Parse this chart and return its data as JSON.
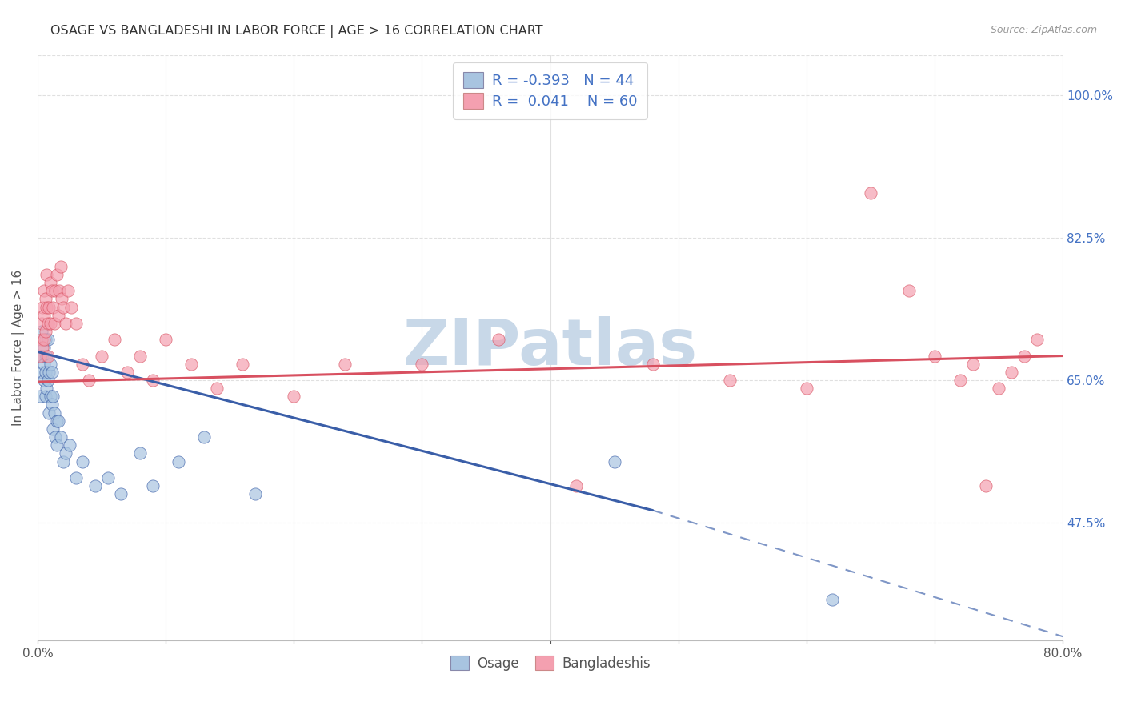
{
  "title": "OSAGE VS BANGLADESHI IN LABOR FORCE | AGE > 16 CORRELATION CHART",
  "source": "Source: ZipAtlas.com",
  "ylabel": "In Labor Force | Age > 16",
  "xlim": [
    0.0,
    0.8
  ],
  "ylim": [
    0.33,
    1.05
  ],
  "yticks": [
    0.475,
    0.65,
    0.825,
    1.0
  ],
  "ytick_labels": [
    "47.5%",
    "65.0%",
    "82.5%",
    "100.0%"
  ],
  "xticks": [
    0.0,
    0.1,
    0.2,
    0.3,
    0.4,
    0.5,
    0.6,
    0.7,
    0.8
  ],
  "xtick_labels": [
    "0.0%",
    "",
    "",
    "",
    "",
    "",
    "",
    "",
    "80.0%"
  ],
  "osage_color": "#a8c4e0",
  "bangladeshi_color": "#f4a0b0",
  "osage_line_color": "#3a5ea8",
  "bangladeshi_line_color": "#d85060",
  "legend_R_osage": "-0.393",
  "legend_N_osage": "44",
  "legend_R_bangladeshi": "0.041",
  "legend_N_bangladeshi": "60",
  "watermark": "ZIPatlas",
  "watermark_color": "#c8d8e8",
  "background_color": "#ffffff",
  "grid_color": "#e0e0e0",
  "grid_style_h": "--",
  "grid_style_v": "-",
  "right_axis_color": "#4472c4",
  "title_color": "#333333",
  "osage_trend": {
    "x_start": 0.0,
    "x_end": 0.8,
    "y_start": 0.685,
    "y_end": 0.335,
    "solid_end_x": 0.48,
    "solid_end_y": 0.49
  },
  "bangladeshi_trend": {
    "x_start": 0.0,
    "x_end": 0.8,
    "y_start": 0.648,
    "y_end": 0.68
  },
  "osage_scatter": {
    "x": [
      0.002,
      0.003,
      0.003,
      0.004,
      0.004,
      0.005,
      0.005,
      0.005,
      0.006,
      0.006,
      0.006,
      0.007,
      0.007,
      0.008,
      0.008,
      0.009,
      0.009,
      0.01,
      0.01,
      0.011,
      0.011,
      0.012,
      0.012,
      0.013,
      0.014,
      0.015,
      0.015,
      0.016,
      0.018,
      0.02,
      0.022,
      0.025,
      0.03,
      0.035,
      0.045,
      0.055,
      0.065,
      0.08,
      0.09,
      0.11,
      0.13,
      0.17,
      0.45,
      0.62
    ],
    "y": [
      0.63,
      0.71,
      0.68,
      0.68,
      0.66,
      0.69,
      0.67,
      0.65,
      0.7,
      0.66,
      0.63,
      0.68,
      0.64,
      0.7,
      0.65,
      0.66,
      0.61,
      0.67,
      0.63,
      0.66,
      0.62,
      0.63,
      0.59,
      0.61,
      0.58,
      0.6,
      0.57,
      0.6,
      0.58,
      0.55,
      0.56,
      0.57,
      0.53,
      0.55,
      0.52,
      0.53,
      0.51,
      0.56,
      0.52,
      0.55,
      0.58,
      0.51,
      0.55,
      0.38
    ]
  },
  "bangladeshi_scatter": {
    "x": [
      0.002,
      0.003,
      0.003,
      0.004,
      0.004,
      0.005,
      0.005,
      0.005,
      0.006,
      0.006,
      0.007,
      0.007,
      0.008,
      0.008,
      0.009,
      0.01,
      0.01,
      0.011,
      0.012,
      0.013,
      0.014,
      0.015,
      0.016,
      0.017,
      0.018,
      0.019,
      0.02,
      0.022,
      0.024,
      0.026,
      0.03,
      0.035,
      0.04,
      0.05,
      0.06,
      0.07,
      0.08,
      0.09,
      0.1,
      0.12,
      0.14,
      0.16,
      0.2,
      0.24,
      0.3,
      0.36,
      0.42,
      0.48,
      0.54,
      0.6,
      0.65,
      0.68,
      0.7,
      0.72,
      0.73,
      0.74,
      0.75,
      0.76,
      0.77,
      0.78
    ],
    "y": [
      0.68,
      0.72,
      0.7,
      0.74,
      0.69,
      0.76,
      0.73,
      0.7,
      0.75,
      0.71,
      0.78,
      0.74,
      0.72,
      0.68,
      0.74,
      0.77,
      0.72,
      0.76,
      0.74,
      0.72,
      0.76,
      0.78,
      0.73,
      0.76,
      0.79,
      0.75,
      0.74,
      0.72,
      0.76,
      0.74,
      0.72,
      0.67,
      0.65,
      0.68,
      0.7,
      0.66,
      0.68,
      0.65,
      0.7,
      0.67,
      0.64,
      0.67,
      0.63,
      0.67,
      0.67,
      0.7,
      0.52,
      0.67,
      0.65,
      0.64,
      0.88,
      0.76,
      0.68,
      0.65,
      0.67,
      0.52,
      0.64,
      0.66,
      0.68,
      0.7
    ]
  }
}
